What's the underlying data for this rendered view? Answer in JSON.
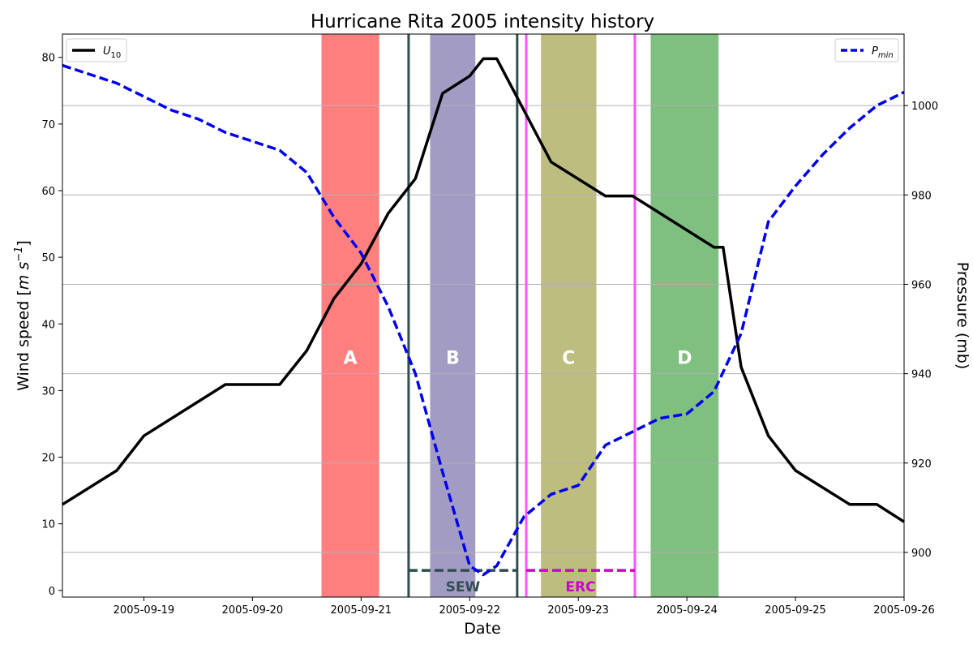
{
  "chart_data": {
    "type": "line",
    "title": "Hurricane Rita 2005 intensity history",
    "xlabel": "Date",
    "ylabel_left_main": "Wind speed [",
    "ylabel_left_unit": "m s",
    "ylabel_left_exp": "−1",
    "ylabel_left_close": "]",
    "ylabel_right": "Pressure (mb)",
    "x_range": [
      "2005-09-18 06:00",
      "2005-09-26 00:00"
    ],
    "x_ticks": [
      "2005-09-19",
      "2005-09-20",
      "2005-09-21",
      "2005-09-22",
      "2005-09-23",
      "2005-09-24",
      "2005-09-25",
      "2005-09-26"
    ],
    "y_left_range": [
      -1,
      83.5
    ],
    "y_left_ticks": [
      0,
      10,
      20,
      30,
      40,
      50,
      60,
      70,
      80
    ],
    "y_right_range": [
      890,
      1016
    ],
    "y_right_ticks": [
      900,
      920,
      940,
      960,
      980,
      1000
    ],
    "grid": "horizontal lines at right-axis ticks",
    "legend_left": {
      "label": "U",
      "sub": "10",
      "position": "upper-left"
    },
    "legend_right": {
      "label": "P",
      "sub": "min",
      "position": "upper-right"
    },
    "series": [
      {
        "name": "U10",
        "axis": "left",
        "color": "#000000",
        "style": "solid",
        "points": [
          [
            "2005-09-18 06:00",
            12.9
          ],
          [
            "2005-09-18 18:00",
            18.0
          ],
          [
            "2005-09-19 00:00",
            23.2
          ],
          [
            "2005-09-19 18:00",
            30.9
          ],
          [
            "2005-09-20 06:00",
            30.9
          ],
          [
            "2005-09-20 12:00",
            36.0
          ],
          [
            "2005-09-20 18:00",
            43.8
          ],
          [
            "2005-09-21 00:00",
            49.0
          ],
          [
            "2005-09-21 06:00",
            56.6
          ],
          [
            "2005-09-21 12:00",
            61.8
          ],
          [
            "2005-09-21 18:00",
            74.6
          ],
          [
            "2005-09-22 00:00",
            77.2
          ],
          [
            "2005-09-22 03:00",
            79.8
          ],
          [
            "2005-09-22 06:00",
            79.8
          ],
          [
            "2005-09-22 18:00",
            64.3
          ],
          [
            "2005-09-23 06:00",
            59.2
          ],
          [
            "2005-09-23 12:00",
            59.2
          ],
          [
            "2005-09-24 06:00",
            51.5
          ],
          [
            "2005-09-24 08:00",
            51.5
          ],
          [
            "2005-09-24 12:00",
            33.5
          ],
          [
            "2005-09-24 18:00",
            23.2
          ],
          [
            "2005-09-25 00:00",
            18.0
          ],
          [
            "2005-09-25 12:00",
            12.9
          ],
          [
            "2005-09-25 18:00",
            12.9
          ],
          [
            "2005-09-26 00:00",
            10.3
          ]
        ]
      },
      {
        "name": "Pmin",
        "axis": "right",
        "color": "#0000ee",
        "style": "dashed",
        "points": [
          [
            "2005-09-18 06:00",
            1009
          ],
          [
            "2005-09-18 18:00",
            1005
          ],
          [
            "2005-09-19 00:00",
            1002
          ],
          [
            "2005-09-19 06:00",
            999
          ],
          [
            "2005-09-19 12:00",
            997
          ],
          [
            "2005-09-19 18:00",
            994
          ],
          [
            "2005-09-20 00:00",
            992
          ],
          [
            "2005-09-20 06:00",
            990
          ],
          [
            "2005-09-20 12:00",
            985
          ],
          [
            "2005-09-20 18:00",
            975
          ],
          [
            "2005-09-21 00:00",
            967
          ],
          [
            "2005-09-21 06:00",
            955
          ],
          [
            "2005-09-21 12:00",
            940
          ],
          [
            "2005-09-21 18:00",
            918
          ],
          [
            "2005-09-22 00:00",
            897
          ],
          [
            "2005-09-22 03:00",
            895
          ],
          [
            "2005-09-22 06:00",
            897
          ],
          [
            "2005-09-22 12:00",
            908
          ],
          [
            "2005-09-22 18:00",
            913
          ],
          [
            "2005-09-23 00:00",
            915
          ],
          [
            "2005-09-23 06:00",
            924
          ],
          [
            "2005-09-23 12:00",
            927
          ],
          [
            "2005-09-23 18:00",
            930
          ],
          [
            "2005-09-24 00:00",
            931
          ],
          [
            "2005-09-24 06:00",
            936
          ],
          [
            "2005-09-24 12:00",
            949
          ],
          [
            "2005-09-24 18:00",
            974
          ],
          [
            "2005-09-25 00:00",
            982
          ],
          [
            "2005-09-25 06:00",
            989
          ],
          [
            "2005-09-25 12:00",
            995
          ],
          [
            "2005-09-25 18:00",
            1000
          ],
          [
            "2005-09-26 00:00",
            1003
          ]
        ]
      }
    ],
    "shaded_regions": [
      {
        "label": "A",
        "start": "2005-09-20 15:15",
        "end": "2005-09-21 04:00",
        "color": "#ff7f7f"
      },
      {
        "label": "B",
        "start": "2005-09-21 15:15",
        "end": "2005-09-22 01:15",
        "color": "#a29cc4"
      },
      {
        "label": "C",
        "start": "2005-09-22 15:45",
        "end": "2005-09-23 04:00",
        "color": "#bdbd7f"
      },
      {
        "label": "D",
        "start": "2005-09-23 16:00",
        "end": "2005-09-24 07:00",
        "color": "#7fbf7f"
      }
    ],
    "vertical_lines": [
      {
        "x": "2005-09-21 10:30",
        "color": "#2f4f4f"
      },
      {
        "x": "2005-09-22 10:30",
        "color": "#2f4f4f"
      },
      {
        "x": "2005-09-22 12:30",
        "color": "#ff55ff"
      },
      {
        "x": "2005-09-23 12:30",
        "color": "#ff55ff"
      }
    ],
    "spans": [
      {
        "label": "SEW",
        "start": "2005-09-21 10:30",
        "end": "2005-09-22 10:30",
        "y": 3.0,
        "color": "#2f4f4f"
      },
      {
        "label": "ERC",
        "start": "2005-09-22 12:30",
        "end": "2005-09-23 12:30",
        "y": 3.0,
        "color": "#cc00cc"
      }
    ]
  }
}
